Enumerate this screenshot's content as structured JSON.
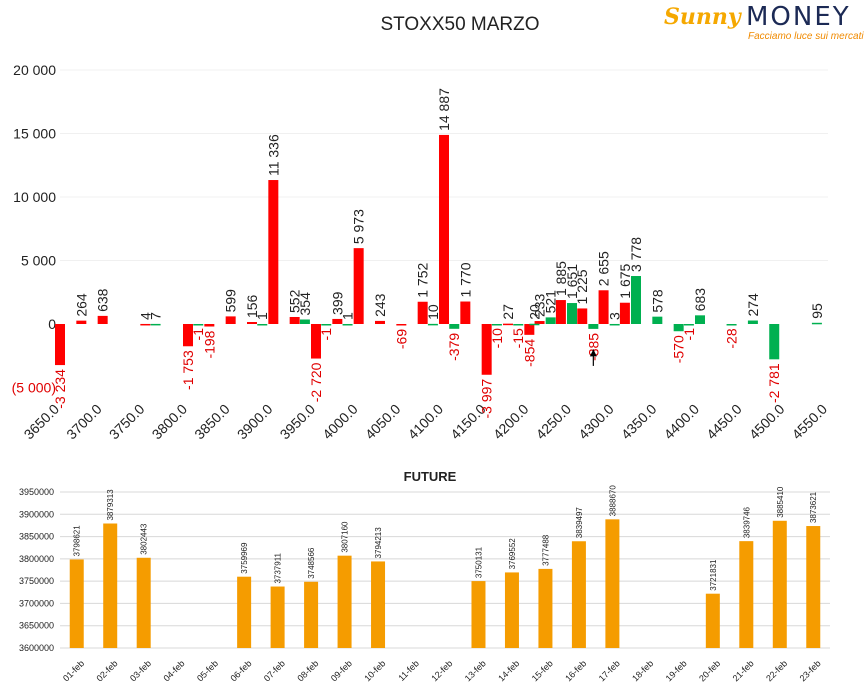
{
  "header": {
    "title": "STOXX50 MARZO",
    "logo_sunny": "Sunny",
    "logo_money": "MONEY",
    "logo_tagline": "Facciamo luce sui mercati"
  },
  "colors": {
    "positive": "#ff0000",
    "negative": "#00b050",
    "future_bar": "#f59c00",
    "neg_label": "#e00000",
    "text": "#222222"
  },
  "chart_data": [
    {
      "type": "bar",
      "title": "STOXX50 MARZO",
      "ylim": [
        -5000,
        20000
      ],
      "yticks": [
        {
          "value": 20000,
          "label": "20 000"
        },
        {
          "value": 15000,
          "label": "15 000"
        },
        {
          "value": 10000,
          "label": "10 000"
        },
        {
          "value": 5000,
          "label": "5 000"
        },
        {
          "value": 0,
          "label": "0"
        },
        {
          "value": -5000,
          "label": "(5 000)"
        }
      ],
      "xlim": [
        3650,
        4550
      ],
      "xticks": [
        "3650.0",
        "3700.0",
        "3750.0",
        "3800.0",
        "3850.0",
        "3900.0",
        "3950.0",
        "4000.0",
        "4050.0",
        "4100.0",
        "4150.0",
        "4200.0",
        "4250.0",
        "4300.0",
        "4350.0",
        "4400.0",
        "4450.0",
        "4500.0",
        "4550.0"
      ],
      "grid": true,
      "annotations": [
        {
          "type": "arrow",
          "x": 4275,
          "from": -3300,
          "to": -2000
        }
      ],
      "series": [
        {
          "color": "red",
          "points": [
            {
              "x": 3650,
              "value": -3234,
              "label": "-3 234"
            },
            {
              "x": 3675,
              "value": 264,
              "label": "264"
            },
            {
              "x": 3700,
              "value": 638,
              "label": "638"
            },
            {
              "x": 3750,
              "value": 4,
              "label": "4"
            },
            {
              "x": 3800,
              "value": -1753,
              "label": "-1 753"
            },
            {
              "x": 3825,
              "value": -198,
              "label": "-198"
            },
            {
              "x": 3850,
              "value": 599,
              "label": "599"
            },
            {
              "x": 3875,
              "value": 156,
              "label": "156"
            },
            {
              "x": 3900,
              "value": 11336,
              "label": "11 336"
            },
            {
              "x": 3925,
              "value": 552,
              "label": "552"
            },
            {
              "x": 3950,
              "value": -2720,
              "label": "-2 720"
            },
            {
              "x": 3975,
              "value": 399,
              "label": "399"
            },
            {
              "x": 4000,
              "value": 5973,
              "label": "5 973"
            },
            {
              "x": 4025,
              "value": 243,
              "label": "243"
            },
            {
              "x": 4050,
              "value": -69,
              "label": "-69"
            },
            {
              "x": 4075,
              "value": 1752,
              "label": "1 752"
            },
            {
              "x": 4100,
              "value": 14887,
              "label": "14 887"
            },
            {
              "x": 4125,
              "value": 1770,
              "label": "1 770"
            },
            {
              "x": 4150,
              "value": -3997,
              "label": "-3 997"
            },
            {
              "x": 4175,
              "value": 27,
              "label": "27"
            },
            {
              "x": 4200,
              "value": -854,
              "label": "-854"
            },
            {
              "x": 4212,
              "value": 233,
              "label": "233"
            },
            {
              "x": 4237,
              "value": 1885,
              "label": "1 885"
            },
            {
              "x": 4262,
              "value": 1225,
              "label": "1 225"
            },
            {
              "x": 4287,
              "value": 2655,
              "label": "2 655"
            },
            {
              "x": 4312,
              "value": 1675,
              "label": "1 675"
            }
          ]
        },
        {
          "color": "green",
          "points": [
            {
              "x": 3762,
              "value": 7,
              "label": "7"
            },
            {
              "x": 3812,
              "value": -1,
              "label": "-1"
            },
            {
              "x": 3887,
              "value": 1,
              "label": "1"
            },
            {
              "x": 3937,
              "value": 354,
              "label": "354"
            },
            {
              "x": 3962,
              "value": -1,
              "label": "-1"
            },
            {
              "x": 3987,
              "value": 1,
              "label": "1"
            },
            {
              "x": 4087,
              "value": 10,
              "label": "10"
            },
            {
              "x": 4112,
              "value": -379,
              "label": "-379"
            },
            {
              "x": 4162,
              "value": -10,
              "label": "-10"
            },
            {
              "x": 4187,
              "value": -15,
              "label": "-15"
            },
            {
              "x": 4206,
              "value": 20,
              "label": "20"
            },
            {
              "x": 4225,
              "value": 521,
              "label": "521"
            },
            {
              "x": 4250,
              "value": 1651,
              "label": "1 651"
            },
            {
              "x": 4275,
              "value": -385,
              "label": "-385"
            },
            {
              "x": 4300,
              "value": 3,
              "label": "3"
            },
            {
              "x": 4325,
              "value": 3778,
              "label": "3 778"
            },
            {
              "x": 4350,
              "value": 578,
              "label": "578"
            },
            {
              "x": 4375,
              "value": -570,
              "label": "-570"
            },
            {
              "x": 4387,
              "value": -1,
              "label": "-1"
            },
            {
              "x": 4400,
              "value": 683,
              "label": "683"
            },
            {
              "x": 4437,
              "value": -28,
              "label": "-28"
            },
            {
              "x": 4462,
              "value": 274,
              "label": "274"
            },
            {
              "x": 4487,
              "value": -2781,
              "label": "-2 781"
            },
            {
              "x": 4537,
              "value": 95,
              "label": "95"
            }
          ]
        }
      ]
    },
    {
      "type": "bar",
      "title": "FUTURE",
      "ylim": [
        3600000,
        3950000
      ],
      "yticks": [
        3600000,
        3650000,
        3700000,
        3750000,
        3800000,
        3850000,
        3900000,
        3950000
      ],
      "categories": [
        "01-feb",
        "02-feb",
        "03-feb",
        "04-feb",
        "05-feb",
        "06-feb",
        "07-feb",
        "08-feb",
        "09-feb",
        "10-feb",
        "11-feb",
        "12-feb",
        "13-feb",
        "14-feb",
        "15-feb",
        "16-feb",
        "17-feb",
        "18-feb",
        "19-feb",
        "20-feb",
        "21-feb",
        "22-feb",
        "23-feb"
      ],
      "values": [
        3798621,
        3879313,
        3802443,
        null,
        null,
        3759969,
        3737911,
        3748566,
        3807160,
        3794213,
        null,
        null,
        3750131,
        3769552,
        3777488,
        3839497,
        3888670,
        null,
        null,
        3721831,
        3839746,
        3885410,
        3873621
      ],
      "grid": true
    }
  ]
}
